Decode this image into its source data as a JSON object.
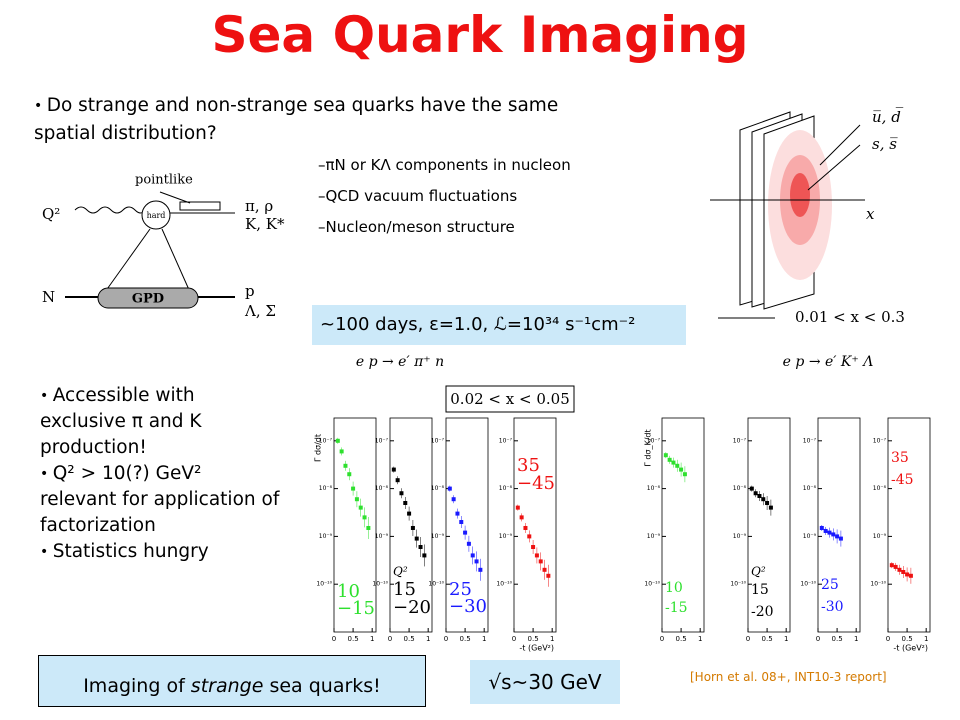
{
  "title": "Sea Quark Imaging",
  "question": "Do strange and non-strange sea quarks have the same spatial distribution?",
  "sub_bullets": [
    "–πN or KΛ components in nucleon",
    "–QCD vacuum fluctuations",
    "–Nucleon/meson structure"
  ],
  "process_diagram": {
    "labels": [
      "pointlike",
      "Q²",
      "hard",
      "π, ρ",
      "K, K*",
      "N",
      "GPD",
      "p",
      "Λ, Σ"
    ]
  },
  "transverse_diagram": {
    "labels": [
      "u̅, d̅",
      "s, s̅",
      "x",
      "0.01 < x < 0.3"
    ]
  },
  "run_conditions": "~100 days, ε=1.0, ℒ=10³⁴ s⁻¹cm⁻²",
  "bullets": [
    "Accessible with exclusive π and K production!",
    "Q² > 10(?) GeV² relevant for application of factorization",
    "Statistics hungry"
  ],
  "figures": [
    {
      "title": "e p → e′ π⁺ n",
      "x_range_label": "0.02 < x < 0.05",
      "y_label": "Γ dσ/dt",
      "x_label": "-t (GeV²)",
      "xlim": [
        0,
        1.1
      ],
      "xticks": [
        0,
        0.5,
        1
      ],
      "ylim": [
        1e-11,
        3e-07
      ],
      "log_y": true,
      "yticks": [
        {
          "value": 1e-07,
          "label": "10⁻⁷"
        },
        {
          "value": 1e-08,
          "label": "10⁻⁸"
        },
        {
          "value": 1e-09,
          "label": "10⁻⁹"
        },
        {
          "value": 1e-10,
          "label": "10⁻¹⁰"
        }
      ],
      "panels": [
        {
          "label": [
            "10",
            "−15"
          ],
          "color": "#2ee02e",
          "t": [
            0.1,
            0.2,
            0.3,
            0.4,
            0.5,
            0.6,
            0.7,
            0.8,
            0.9
          ],
          "values": [
            1e-07,
            6e-08,
            3e-08,
            2e-08,
            1e-08,
            6e-09,
            4e-09,
            2.5e-09,
            1.5e-09
          ]
        },
        {
          "label": [
            "Q²",
            "15",
            "−20"
          ],
          "color": "#000000",
          "t": [
            0.1,
            0.2,
            0.3,
            0.4,
            0.5,
            0.6,
            0.7,
            0.8,
            0.9
          ],
          "values": [
            2.5e-08,
            1.5e-08,
            8e-09,
            5e-09,
            3e-09,
            1.5e-09,
            9e-10,
            6e-10,
            4e-10
          ]
        },
        {
          "label": [
            "25",
            "−30"
          ],
          "color": "#1a1aff",
          "t": [
            0.1,
            0.2,
            0.3,
            0.4,
            0.5,
            0.6,
            0.7,
            0.8,
            0.9
          ],
          "values": [
            1e-08,
            6e-09,
            3e-09,
            2e-09,
            1.2e-09,
            7e-10,
            4e-10,
            3e-10,
            2e-10
          ]
        },
        {
          "label": [
            "35",
            "−45"
          ],
          "color": "#ee1111",
          "t": [
            0.1,
            0.2,
            0.3,
            0.4,
            0.5,
            0.6,
            0.7,
            0.8,
            0.9
          ],
          "values": [
            4e-09,
            2.5e-09,
            1.5e-09,
            1e-09,
            6e-10,
            4e-10,
            3e-10,
            2e-10,
            1.5e-10
          ]
        }
      ]
    },
    {
      "title": "e p → e′ K⁺ Λ",
      "y_label": "Γ dσ_K/dt",
      "x_label": "-t (GeV²)",
      "xlim": [
        0,
        1.1
      ],
      "xticks": [
        0,
        0.5,
        1
      ],
      "ylim": [
        1e-11,
        3e-07
      ],
      "log_y": true,
      "yticks": [
        {
          "value": 1e-07,
          "label": "10⁻⁷"
        },
        {
          "value": 1e-08,
          "label": "10⁻⁸"
        },
        {
          "value": 1e-09,
          "label": "10⁻⁹"
        },
        {
          "value": 1e-10,
          "label": "10⁻¹⁰"
        }
      ],
      "panels": [
        {
          "label": [
            "10",
            "-15"
          ],
          "color": "#2ee02e",
          "t": [
            0.1,
            0.2,
            0.3,
            0.4,
            0.5,
            0.6
          ],
          "values": [
            5e-08,
            4e-08,
            3.5e-08,
            3e-08,
            2.5e-08,
            2e-08
          ]
        },
        {
          "label": [
            "Q²",
            "15",
            "-20"
          ],
          "color": "#000000",
          "t": [
            0.1,
            0.2,
            0.3,
            0.4,
            0.5,
            0.6
          ],
          "values": [
            1e-08,
            8e-09,
            7e-09,
            6e-09,
            5e-09,
            4e-09
          ]
        },
        {
          "label": [
            "25",
            "-30"
          ],
          "color": "#1a1aff",
          "t": [
            0.1,
            0.2,
            0.3,
            0.4,
            0.5,
            0.6
          ],
          "values": [
            1.5e-09,
            1.3e-09,
            1.2e-09,
            1.1e-09,
            1e-09,
            9e-10
          ]
        },
        {
          "label": [
            "35",
            "-45"
          ],
          "color": "#ee1111",
          "t": [
            0.1,
            0.2,
            0.3,
            0.4,
            0.5,
            0.6
          ],
          "values": [
            2.5e-10,
            2.3e-10,
            2e-10,
            1.8e-10,
            1.6e-10,
            1.5e-10
          ]
        }
      ]
    }
  ],
  "footer_box": [
    "Imaging of ",
    "strange",
    " sea quarks!"
  ],
  "energy": "√s~30 GeV",
  "citation": "[Horn et al. 08+, INT10-3 report]"
}
